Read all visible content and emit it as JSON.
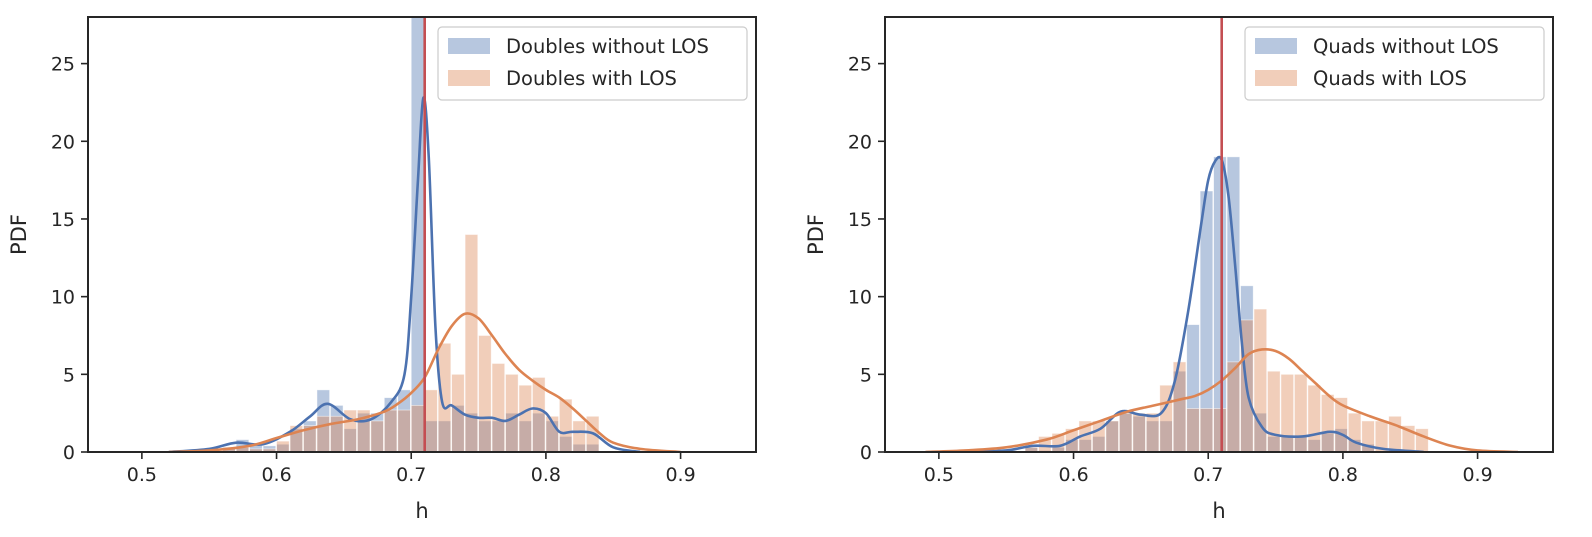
{
  "colors": {
    "blue": "#4c72b0",
    "orange": "#dd8452",
    "red": "#c44e52",
    "axes": "#262626",
    "legend_border": "#cccccc"
  },
  "chart_data": [
    {
      "type": "histogram",
      "xlabel": "h",
      "ylabel": "PDF",
      "xlim": [
        0.46,
        0.956
      ],
      "ylim": [
        0,
        28
      ],
      "xticks": [
        0.5,
        0.6,
        0.7,
        0.8,
        0.9
      ],
      "xtick_labels": [
        "0.5",
        "0.6",
        "0.7",
        "0.8",
        "0.9"
      ],
      "yticks": [
        0,
        5,
        10,
        15,
        20,
        25
      ],
      "ytick_labels": [
        "0",
        "5",
        "10",
        "15",
        "20",
        "25"
      ],
      "reference_line": 0.71,
      "legend_position": "top-right",
      "series": [
        {
          "name": "Doubles without LOS",
          "color": "blue",
          "bins": [
            [
              0.56,
              0.57,
              0.3
            ],
            [
              0.57,
              0.58,
              0.8
            ],
            [
              0.58,
              0.59,
              0.5
            ],
            [
              0.59,
              0.6,
              0.4
            ],
            [
              0.6,
              0.61,
              0.5
            ],
            [
              0.61,
              0.62,
              1.5
            ],
            [
              0.62,
              0.63,
              2.0
            ],
            [
              0.63,
              0.64,
              4.0
            ],
            [
              0.64,
              0.65,
              3.0
            ],
            [
              0.65,
              0.66,
              1.5
            ],
            [
              0.66,
              0.67,
              2.5
            ],
            [
              0.67,
              0.68,
              2.5
            ],
            [
              0.68,
              0.69,
              3.5
            ],
            [
              0.69,
              0.7,
              4.0
            ],
            [
              0.7,
              0.71,
              28.0
            ],
            [
              0.71,
              0.72,
              2.0
            ],
            [
              0.72,
              0.73,
              2.0
            ],
            [
              0.73,
              0.74,
              3.0
            ],
            [
              0.74,
              0.75,
              2.5
            ],
            [
              0.75,
              0.76,
              2.0
            ],
            [
              0.76,
              0.77,
              2.0
            ],
            [
              0.77,
              0.78,
              2.5
            ],
            [
              0.78,
              0.79,
              2.0
            ],
            [
              0.79,
              0.8,
              2.5
            ],
            [
              0.8,
              0.81,
              2.0
            ],
            [
              0.81,
              0.82,
              1.0
            ],
            [
              0.82,
              0.83,
              0.5
            ],
            [
              0.83,
              0.84,
              0.5
            ]
          ],
          "kde_x": [
            0.52,
            0.55,
            0.57,
            0.59,
            0.61,
            0.625,
            0.638,
            0.655,
            0.67,
            0.685,
            0.695,
            0.7,
            0.705,
            0.709,
            0.713,
            0.718,
            0.723,
            0.73,
            0.74,
            0.75,
            0.76,
            0.77,
            0.78,
            0.79,
            0.8,
            0.81,
            0.82,
            0.835,
            0.85,
            0.87
          ],
          "kde_y": [
            0.0,
            0.2,
            0.6,
            0.5,
            1.3,
            2.3,
            3.1,
            2.1,
            2.1,
            3.2,
            5.0,
            10.0,
            17.5,
            22.8,
            19.0,
            8.0,
            3.2,
            3.0,
            2.4,
            2.2,
            2.2,
            2.0,
            2.4,
            2.8,
            2.5,
            1.3,
            1.3,
            1.2,
            0.3,
            0.0
          ]
        },
        {
          "name": "Doubles with LOS",
          "color": "orange",
          "bins": [
            [
              0.56,
              0.57,
              0.3
            ],
            [
              0.57,
              0.58,
              0.3
            ],
            [
              0.58,
              0.59,
              0.2
            ],
            [
              0.59,
              0.6,
              0.2
            ],
            [
              0.6,
              0.61,
              0.7
            ],
            [
              0.61,
              0.62,
              1.7
            ],
            [
              0.62,
              0.63,
              1.7
            ],
            [
              0.63,
              0.64,
              2.3
            ],
            [
              0.64,
              0.65,
              2.3
            ],
            [
              0.65,
              0.66,
              2.7
            ],
            [
              0.66,
              0.67,
              2.7
            ],
            [
              0.67,
              0.68,
              2.0
            ],
            [
              0.68,
              0.69,
              2.7
            ],
            [
              0.69,
              0.7,
              2.7
            ],
            [
              0.7,
              0.71,
              3.0
            ],
            [
              0.71,
              0.72,
              4.0
            ],
            [
              0.72,
              0.73,
              7.0
            ],
            [
              0.73,
              0.74,
              5.0
            ],
            [
              0.74,
              0.75,
              14.0
            ],
            [
              0.75,
              0.76,
              7.5
            ],
            [
              0.76,
              0.77,
              5.7
            ],
            [
              0.77,
              0.78,
              5.0
            ],
            [
              0.78,
              0.79,
              4.3
            ],
            [
              0.79,
              0.8,
              4.8
            ],
            [
              0.8,
              0.81,
              2.3
            ],
            [
              0.81,
              0.82,
              3.4
            ],
            [
              0.82,
              0.83,
              2.0
            ],
            [
              0.83,
              0.84,
              2.3
            ]
          ],
          "kde_x": [
            0.52,
            0.55,
            0.58,
            0.6,
            0.62,
            0.64,
            0.66,
            0.68,
            0.69,
            0.7,
            0.71,
            0.72,
            0.73,
            0.74,
            0.75,
            0.76,
            0.77,
            0.78,
            0.79,
            0.8,
            0.81,
            0.82,
            0.83,
            0.84,
            0.85,
            0.87,
            0.9
          ],
          "kde_y": [
            0.0,
            0.1,
            0.4,
            0.9,
            1.4,
            1.8,
            2.1,
            2.6,
            3.1,
            3.8,
            4.8,
            6.6,
            8.1,
            8.9,
            8.6,
            7.5,
            6.3,
            5.3,
            4.6,
            4.0,
            3.5,
            2.8,
            2.0,
            1.2,
            0.6,
            0.2,
            0.0
          ]
        }
      ]
    },
    {
      "type": "histogram",
      "xlabel": "h",
      "ylabel": "PDF",
      "xlim": [
        0.46,
        0.956
      ],
      "ylim": [
        0,
        28
      ],
      "xticks": [
        0.5,
        0.6,
        0.7,
        0.8,
        0.9
      ],
      "xtick_labels": [
        "0.5",
        "0.6",
        "0.7",
        "0.8",
        "0.9"
      ],
      "yticks": [
        0,
        5,
        10,
        15,
        20,
        25
      ],
      "ytick_labels": [
        "0",
        "5",
        "10",
        "15",
        "20",
        "25"
      ],
      "reference_line": 0.71,
      "legend_position": "top-right",
      "series": [
        {
          "name": "Quads without LOS",
          "color": "blue",
          "bins": [
            [
              0.564,
              0.574,
              0.3
            ],
            [
              0.574,
              0.584,
              0.1
            ],
            [
              0.584,
              0.594,
              0.3
            ],
            [
              0.594,
              0.604,
              0.8
            ],
            [
              0.604,
              0.614,
              0.8
            ],
            [
              0.614,
              0.624,
              1.0
            ],
            [
              0.624,
              0.634,
              2.0
            ],
            [
              0.634,
              0.644,
              2.5
            ],
            [
              0.644,
              0.654,
              2.3
            ],
            [
              0.654,
              0.664,
              2.0
            ],
            [
              0.664,
              0.674,
              2.0
            ],
            [
              0.674,
              0.684,
              5.2
            ],
            [
              0.684,
              0.694,
              8.2
            ],
            [
              0.694,
              0.704,
              16.8
            ],
            [
              0.704,
              0.714,
              19.0
            ],
            [
              0.714,
              0.724,
              19.0
            ],
            [
              0.724,
              0.734,
              10.7
            ],
            [
              0.734,
              0.744,
              2.5
            ],
            [
              0.744,
              0.754,
              1.0
            ],
            [
              0.754,
              0.764,
              1.0
            ],
            [
              0.764,
              0.774,
              1.0
            ],
            [
              0.774,
              0.784,
              0.8
            ],
            [
              0.784,
              0.794,
              1.2
            ],
            [
              0.794,
              0.804,
              1.5
            ],
            [
              0.804,
              0.814,
              0.8
            ],
            [
              0.814,
              0.824,
              0.5
            ]
          ],
          "kde_x": [
            0.52,
            0.55,
            0.57,
            0.59,
            0.605,
            0.62,
            0.635,
            0.65,
            0.665,
            0.675,
            0.685,
            0.695,
            0.7,
            0.705,
            0.71,
            0.715,
            0.72,
            0.725,
            0.73,
            0.74,
            0.75,
            0.77,
            0.79,
            0.8,
            0.81,
            0.83,
            0.86
          ],
          "kde_y": [
            0.0,
            0.1,
            0.4,
            0.4,
            1.0,
            1.5,
            2.6,
            2.4,
            2.5,
            4.5,
            9.0,
            14.8,
            17.5,
            18.7,
            18.8,
            16.5,
            12.0,
            7.0,
            3.5,
            1.6,
            1.1,
            1.0,
            1.3,
            1.1,
            0.6,
            0.2,
            0.0
          ]
        },
        {
          "name": "Quads with LOS",
          "color": "orange",
          "bins": [
            [
              0.564,
              0.574,
              0.3
            ],
            [
              0.574,
              0.584,
              1.0
            ],
            [
              0.584,
              0.594,
              1.2
            ],
            [
              0.594,
              0.604,
              1.5
            ],
            [
              0.604,
              0.614,
              2.0
            ],
            [
              0.614,
              0.624,
              2.0
            ],
            [
              0.624,
              0.634,
              2.0
            ],
            [
              0.634,
              0.644,
              2.5
            ],
            [
              0.644,
              0.654,
              2.5
            ],
            [
              0.654,
              0.664,
              2.5
            ],
            [
              0.664,
              0.674,
              4.3
            ],
            [
              0.674,
              0.684,
              5.8
            ],
            [
              0.684,
              0.694,
              2.8
            ],
            [
              0.694,
              0.704,
              2.8
            ],
            [
              0.704,
              0.714,
              2.8
            ],
            [
              0.714,
              0.724,
              5.8
            ],
            [
              0.724,
              0.734,
              8.5
            ],
            [
              0.734,
              0.744,
              9.2
            ],
            [
              0.744,
              0.754,
              5.2
            ],
            [
              0.754,
              0.764,
              5.0
            ],
            [
              0.764,
              0.774,
              5.0
            ],
            [
              0.774,
              0.784,
              4.3
            ],
            [
              0.784,
              0.794,
              3.7
            ],
            [
              0.794,
              0.804,
              3.5
            ],
            [
              0.804,
              0.814,
              2.5
            ],
            [
              0.814,
              0.824,
              2.0
            ],
            [
              0.824,
              0.834,
              2.0
            ],
            [
              0.834,
              0.844,
              2.3
            ],
            [
              0.844,
              0.854,
              1.7
            ],
            [
              0.854,
              0.864,
              1.5
            ]
          ],
          "kde_x": [
            0.49,
            0.52,
            0.55,
            0.58,
            0.6,
            0.62,
            0.64,
            0.66,
            0.68,
            0.69,
            0.7,
            0.71,
            0.72,
            0.73,
            0.74,
            0.75,
            0.76,
            0.77,
            0.78,
            0.79,
            0.8,
            0.82,
            0.84,
            0.86,
            0.88,
            0.9,
            0.93
          ],
          "kde_y": [
            0.0,
            0.1,
            0.3,
            0.8,
            1.4,
            2.0,
            2.6,
            3.0,
            3.4,
            3.6,
            4.0,
            4.6,
            5.4,
            6.3,
            6.6,
            6.5,
            6.0,
            5.2,
            4.4,
            3.6,
            3.0,
            2.3,
            1.7,
            1.0,
            0.4,
            0.1,
            0.0
          ]
        }
      ]
    }
  ]
}
